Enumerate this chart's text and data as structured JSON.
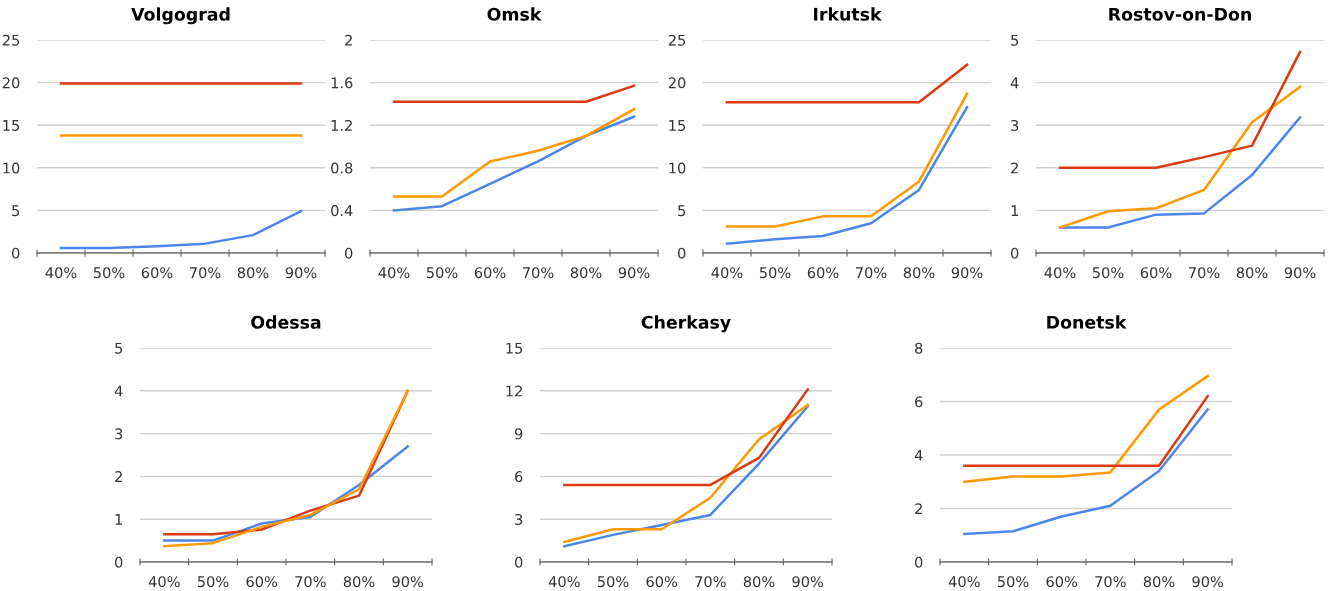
{
  "chart_data": [
    {
      "type": "line",
      "title": "Volgograd",
      "categories": [
        "40%",
        "50%",
        "60%",
        "70%",
        "80%",
        "90%"
      ],
      "ylim": [
        0,
        25
      ],
      "yticks": [
        0,
        5,
        10,
        15,
        20,
        25
      ],
      "grid": "y",
      "legend": false,
      "marker": "none",
      "series": [
        {
          "color": "#4a86e8",
          "values": [
            0.6,
            0.6,
            0.8,
            1.1,
            2.1,
            4.9
          ]
        },
        {
          "color": "#ff9900",
          "values": [
            13.8,
            13.8,
            13.8,
            13.8,
            13.8,
            13.8
          ]
        },
        {
          "color": "#dc3912",
          "values": [
            19.9,
            19.9,
            19.9,
            19.9,
            19.9,
            19.9
          ]
        }
      ]
    },
    {
      "type": "line",
      "title": "Omsk",
      "categories": [
        "40%",
        "50%",
        "60%",
        "70%",
        "80%",
        "90%"
      ],
      "ylim": [
        0,
        2
      ],
      "yticks": [
        0,
        0.4,
        0.8,
        1.2,
        1.6,
        2
      ],
      "grid": "y",
      "legend": false,
      "marker": "none",
      "series": [
        {
          "color": "#4a86e8",
          "values": [
            0.4,
            0.44,
            0.65,
            0.86,
            1.1,
            1.28
          ]
        },
        {
          "color": "#ff9900",
          "values": [
            0.53,
            0.53,
            0.86,
            0.96,
            1.1,
            1.35
          ]
        },
        {
          "color": "#dc3912",
          "values": [
            1.42,
            1.42,
            1.42,
            1.42,
            1.42,
            1.57
          ]
        }
      ]
    },
    {
      "type": "line",
      "title": "Irkutsk",
      "categories": [
        "40%",
        "50%",
        "60%",
        "70%",
        "80%",
        "90%"
      ],
      "ylim": [
        0,
        25
      ],
      "yticks": [
        0,
        5,
        10,
        15,
        20,
        25
      ],
      "grid": "y",
      "legend": false,
      "marker": "none",
      "series": [
        {
          "color": "#4a86e8",
          "values": [
            1.1,
            1.6,
            2.0,
            3.5,
            7.4,
            17.1
          ]
        },
        {
          "color": "#ff9900",
          "values": [
            3.1,
            3.1,
            4.3,
            4.3,
            8.4,
            18.7
          ]
        },
        {
          "color": "#dc3912",
          "values": [
            17.7,
            17.7,
            17.7,
            17.7,
            17.7,
            22.1
          ]
        }
      ]
    },
    {
      "type": "line",
      "title": "Rostov-on-Don",
      "categories": [
        "40%",
        "50%",
        "60%",
        "70%",
        "80%",
        "90%"
      ],
      "ylim": [
        0,
        5
      ],
      "yticks": [
        0,
        1,
        2,
        3,
        4,
        5
      ],
      "grid": "y",
      "legend": false,
      "marker": "none",
      "series": [
        {
          "color": "#4a86e8",
          "values": [
            0.6,
            0.6,
            0.9,
            0.93,
            1.83,
            3.18
          ]
        },
        {
          "color": "#ff9900",
          "values": [
            0.6,
            0.98,
            1.05,
            1.48,
            3.07,
            3.9
          ]
        },
        {
          "color": "#dc3912",
          "values": [
            2.0,
            2.0,
            2.0,
            2.25,
            2.52,
            4.72
          ]
        }
      ]
    },
    {
      "type": "line",
      "title": "Odessa",
      "categories": [
        "40%",
        "50%",
        "60%",
        "70%",
        "80%",
        "90%"
      ],
      "ylim": [
        0,
        5
      ],
      "yticks": [
        0,
        1,
        2,
        3,
        4,
        5
      ],
      "grid": "y",
      "legend": false,
      "marker": "none",
      "series": [
        {
          "color": "#4a86e8",
          "values": [
            0.5,
            0.5,
            0.9,
            1.05,
            1.8,
            2.7
          ]
        },
        {
          "color": "#dc3912",
          "values": [
            0.65,
            0.65,
            0.76,
            1.2,
            1.55,
            4.0
          ]
        },
        {
          "color": "#ff9900",
          "values": [
            0.37,
            0.44,
            0.82,
            1.1,
            1.7,
            4.0
          ]
        }
      ]
    },
    {
      "type": "line",
      "title": "Cherkasy",
      "categories": [
        "40%",
        "50%",
        "60%",
        "70%",
        "80%",
        "90%"
      ],
      "ylim": [
        0,
        15
      ],
      "yticks": [
        0,
        3,
        6,
        9,
        12,
        15
      ],
      "grid": "y",
      "legend": false,
      "marker": "none",
      "series": [
        {
          "color": "#4a86e8",
          "values": [
            1.1,
            1.9,
            2.6,
            3.3,
            6.9,
            10.9
          ]
        },
        {
          "color": "#ff9900",
          "values": [
            1.4,
            2.3,
            2.3,
            4.5,
            8.6,
            11.0
          ]
        },
        {
          "color": "#dc3912",
          "values": [
            5.4,
            5.4,
            5.4,
            5.4,
            7.3,
            12.1
          ]
        }
      ]
    },
    {
      "type": "line",
      "title": "Donetsk",
      "categories": [
        "40%",
        "50%",
        "60%",
        "70%",
        "80%",
        "90%"
      ],
      "ylim": [
        0,
        8
      ],
      "yticks": [
        0,
        2,
        4,
        6,
        8
      ],
      "grid": "y",
      "legend": false,
      "marker": "none",
      "series": [
        {
          "color": "#4a86e8",
          "values": [
            1.05,
            1.15,
            1.7,
            2.1,
            3.4,
            5.7
          ]
        },
        {
          "color": "#ff9900",
          "values": [
            3.0,
            3.2,
            3.2,
            3.35,
            5.7,
            6.95
          ]
        },
        {
          "color": "#dc3912",
          "values": [
            3.6,
            3.6,
            3.6,
            3.6,
            3.6,
            6.2
          ]
        }
      ]
    }
  ]
}
